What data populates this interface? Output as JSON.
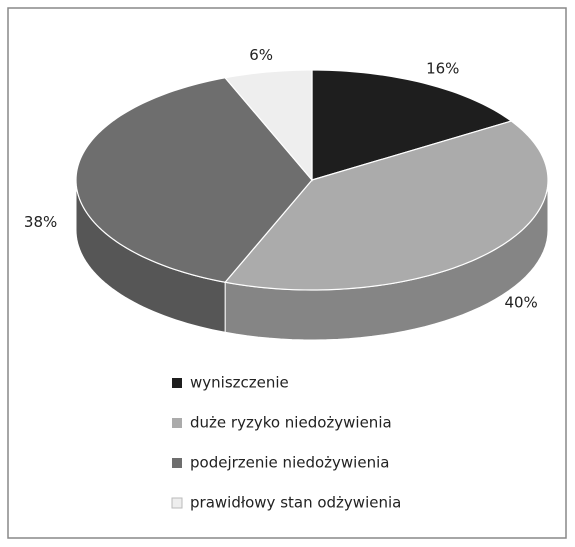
{
  "chart_data": {
    "type": "pie3d",
    "categories": [
      "wyniszczenie",
      "duże ryzyko niedożywienia",
      "podejrzenie niedożywienia",
      "prawidłowy stan odżywienia"
    ],
    "values": [
      16,
      40,
      38,
      6
    ],
    "value_labels": [
      "16%",
      "40%",
      "38%",
      "6%"
    ],
    "colors": [
      "#1e1e1e",
      "#ababab",
      "#6e6e6e",
      "#eeeeee"
    ],
    "legend": "bottom"
  }
}
